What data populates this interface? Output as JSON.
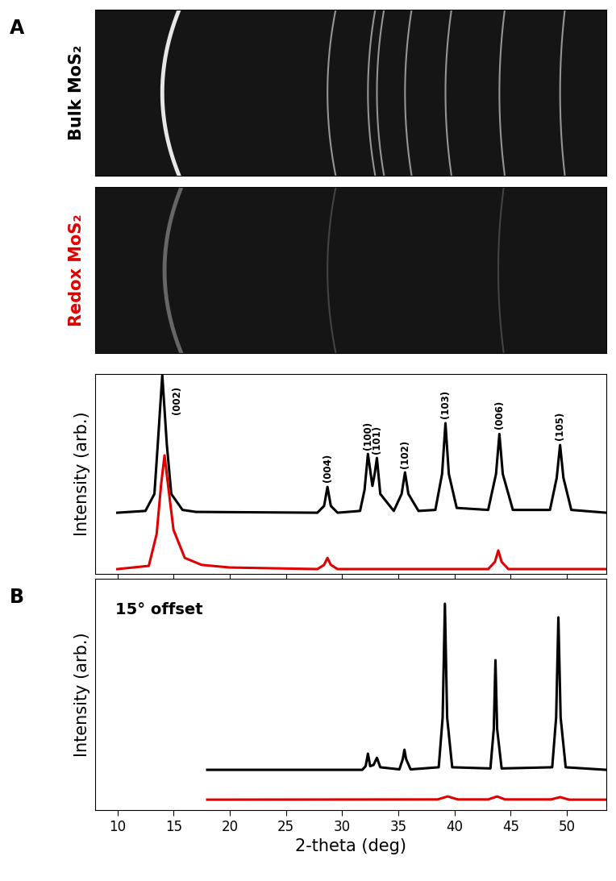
{
  "chart_data": [
    {
      "type": "image",
      "panel": "A",
      "label": "Bulk MoS₂",
      "color": "#000000",
      "xlim": [
        8,
        53.5
      ],
      "rings": [
        14.0,
        28.7,
        32.3,
        33.1,
        35.6,
        39.2,
        44.0,
        49.4
      ]
    },
    {
      "type": "image",
      "label": "Redox MoS₂",
      "color": "#e00000",
      "xlim": [
        8,
        53.5
      ],
      "rings": [
        14.2,
        28.7,
        43.9
      ]
    },
    {
      "type": "line",
      "ylabel": "Intensity (arb.)",
      "xlim": [
        8,
        53.5
      ],
      "ylim": [
        0,
        100
      ],
      "xticks": [
        10,
        15,
        20,
        25,
        30,
        35,
        40,
        45,
        50
      ],
      "tick_labels": false,
      "series": [
        {
          "name": "Bulk MoS₂",
          "color": "#000000",
          "x": [
            10,
            12.5,
            13.3,
            13.6,
            14.0,
            14.4,
            14.8,
            15.8,
            17,
            27.8,
            28.4,
            28.7,
            29.0,
            29.6,
            31.6,
            32.0,
            32.3,
            32.7,
            32.9,
            33.1,
            33.4,
            34.6,
            35.3,
            35.6,
            35.9,
            36.8,
            38.3,
            38.9,
            39.2,
            39.5,
            40.2,
            43.0,
            43.7,
            44.0,
            44.3,
            45.2,
            48.5,
            49.1,
            49.4,
            49.7,
            50.4,
            53.5
          ],
          "values": [
            30.6,
            31.5,
            40,
            65,
            99.5,
            65,
            40,
            32,
            31,
            30.6,
            34,
            43.5,
            34,
            30.6,
            31.5,
            42,
            60,
            44,
            50,
            58,
            40,
            31.5,
            40,
            50.8,
            40,
            31.5,
            32,
            50,
            75.4,
            50,
            33,
            32,
            50,
            70,
            50,
            32,
            32,
            48,
            64.5,
            48,
            32,
            30.6
          ]
        },
        {
          "name": "Redox MoS₂",
          "color": "#e00000",
          "x": [
            10,
            12.8,
            13.5,
            13.9,
            14.2,
            14.5,
            15.0,
            16.0,
            17.5,
            20,
            27.8,
            28.4,
            28.7,
            29.0,
            29.6,
            43.0,
            43.6,
            43.9,
            44.2,
            44.8,
            53.5
          ],
          "values": [
            2.4,
            4,
            20,
            45,
            59.3,
            45,
            22,
            8,
            4.5,
            3.2,
            2.4,
            4.5,
            8,
            4.5,
            2.4,
            2.4,
            6,
            11.7,
            6,
            2.4,
            2.4
          ]
        }
      ],
      "annotations": [
        {
          "text": "(002)",
          "x": 15.3,
          "y": 80
        },
        {
          "text": "(004)",
          "x": 28.7,
          "y": 46
        },
        {
          "text": "(100)",
          "x": 32.3,
          "y": 62
        },
        {
          "text": "(101)",
          "x": 33.1,
          "y": 60
        },
        {
          "text": "(102)",
          "x": 35.6,
          "y": 53
        },
        {
          "text": "(103)",
          "x": 39.2,
          "y": 78
        },
        {
          "text": "(006)",
          "x": 44.0,
          "y": 72.5
        },
        {
          "text": "(105)",
          "x": 49.4,
          "y": 67
        }
      ]
    },
    {
      "type": "line",
      "panel": "B",
      "subtitle": "15° offset",
      "ylabel": "Intensity (arb.)",
      "xlabel": "2-theta (deg)",
      "xlim": [
        8,
        53.5
      ],
      "ylim": [
        0,
        100
      ],
      "xticks": [
        10,
        15,
        20,
        25,
        30,
        35,
        40,
        45,
        50
      ],
      "tick_labels": "x",
      "series": [
        {
          "name": "Bulk MoS₂",
          "color": "#000000",
          "x": [
            18,
            31.8,
            32.1,
            32.3,
            32.5,
            32.8,
            33.1,
            33.4,
            35.1,
            35.4,
            35.55,
            35.7,
            36.1,
            38.6,
            38.95,
            39.15,
            39.35,
            39.8,
            43.2,
            43.5,
            43.65,
            43.8,
            44.2,
            48.7,
            49.05,
            49.25,
            49.45,
            49.9,
            53.5
          ],
          "values": [
            17.4,
            17.4,
            19,
            24.4,
            19,
            19.5,
            22.6,
            18.5,
            17.6,
            22,
            26.1,
            22,
            17.6,
            18.5,
            40,
            89.2,
            40,
            18.5,
            18,
            35,
            64.8,
            35,
            18,
            18.5,
            40,
            83.3,
            40,
            18.5,
            17.4
          ]
        },
        {
          "name": "Redox MoS₂",
          "color": "#e00000",
          "x": [
            18,
            38.5,
            39.4,
            40.3,
            43.0,
            43.8,
            44.5,
            48.6,
            49.4,
            50.2,
            53.5
          ],
          "values": [
            4.5,
            4.6,
            5.9,
            4.6,
            4.6,
            5.9,
            4.6,
            4.6,
            5.6,
            4.5,
            4.5
          ]
        }
      ]
    }
  ]
}
